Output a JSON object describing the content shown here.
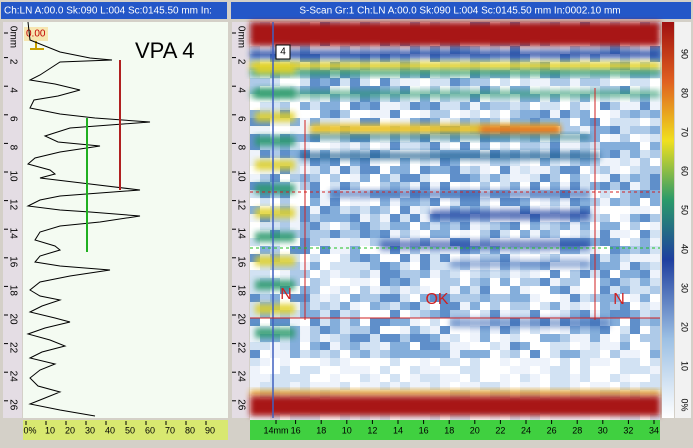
{
  "left_panel": {
    "header": "Ch:LN A:00.0 Sk:090 L:004 Sc:0145.50 mm In:",
    "gate_value": "0.00",
    "label": "VPA 4",
    "depth_labels": [
      "0mm",
      "2",
      "4",
      "6",
      "8",
      "10",
      "12",
      "14",
      "16",
      "18",
      "20",
      "22",
      "24",
      "26"
    ],
    "amplitude_labels": [
      "0%",
      "10",
      "20",
      "30",
      "40",
      "50",
      "60",
      "70",
      "80",
      "90"
    ]
  },
  "right_panel": {
    "header": "S-Scan Gr:1 Ch:LN A:00.0 Sk:090 L:004 Sc:0145.50 mm In:0002.10 mm",
    "cursor_label": "4",
    "zones": [
      "N",
      "OK",
      "N"
    ],
    "depth_labels": [
      "0mm",
      "2",
      "4",
      "6",
      "8",
      "10",
      "12",
      "14",
      "16",
      "18",
      "20",
      "22",
      "24",
      "26"
    ],
    "position_labels": [
      "14mm",
      "16",
      "18",
      "10",
      "12",
      "14",
      "16",
      "18",
      "20",
      "22",
      "24",
      "26",
      "28",
      "30",
      "32",
      "34"
    ],
    "color_scale_labels": [
      "0%",
      "10",
      "20",
      "30",
      "40",
      "50",
      "60",
      "70",
      "80",
      "90"
    ]
  }
}
